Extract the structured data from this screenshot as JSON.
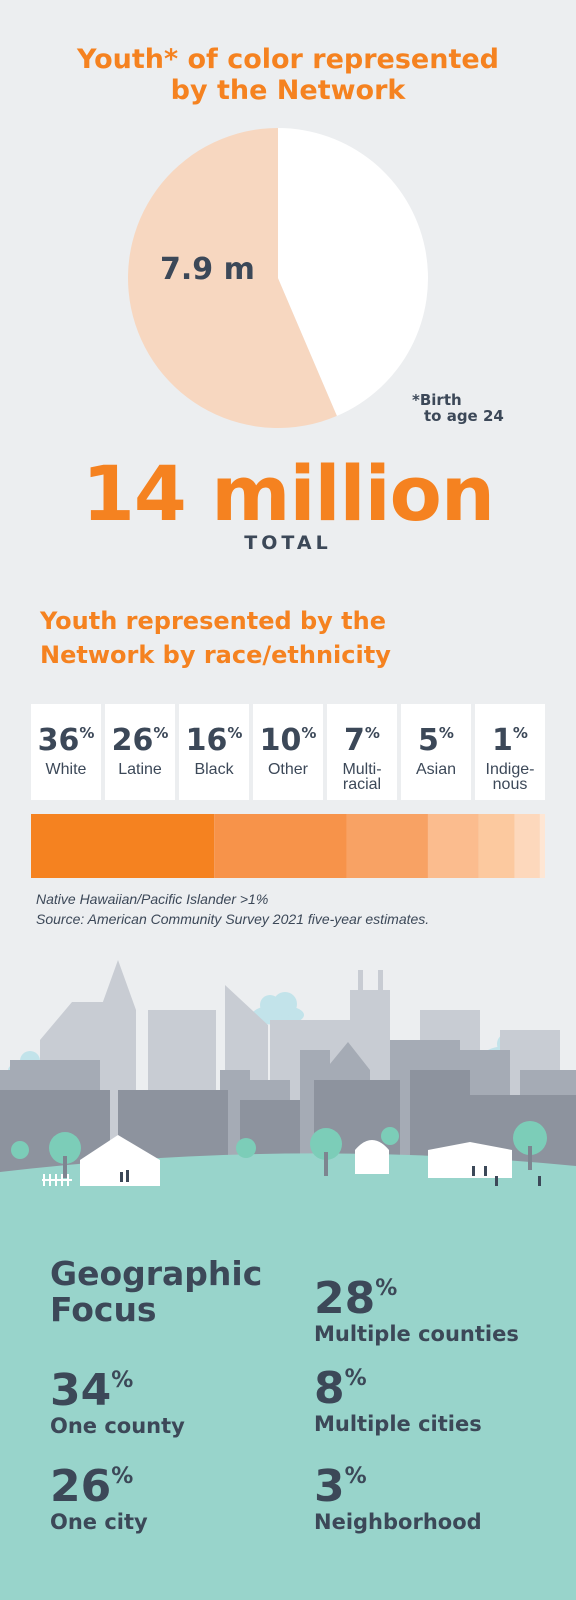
{
  "title_top": "Youth* of color represented by the Network",
  "pie": {
    "label": "7.9 m",
    "footnote_line1": "*Birth",
    "footnote_line2": "to age 24"
  },
  "total": {
    "value": "14 million",
    "word": "TOTAL"
  },
  "race_title": "Youth represented by the Network by race/ethnicity",
  "race_items": [
    {
      "pct": "36",
      "unit": "%",
      "name1": "White",
      "name2": ""
    },
    {
      "pct": "26",
      "unit": "%",
      "name1": "Latine",
      "name2": ""
    },
    {
      "pct": "16",
      "unit": "%",
      "name1": "Black",
      "name2": ""
    },
    {
      "pct": "10",
      "unit": "%",
      "name1": "Other",
      "name2": ""
    },
    {
      "pct": "7",
      "unit": "%",
      "name1": "Multi-",
      "name2": "racial"
    },
    {
      "pct": "5",
      "unit": "%",
      "name1": "Asian",
      "name2": ""
    },
    {
      "pct": "1",
      "unit": "%",
      "name1": "Indige-",
      "name2": "nous"
    }
  ],
  "notes": {
    "line1": "Native Hawaiian/Pacific Islander >1%",
    "line2": "Source: American Community Survey 2021 five-year estimates."
  },
  "geo": {
    "title_line1": "Geographic",
    "title_line2": "Focus",
    "stats": [
      {
        "pct": "28",
        "unit": "%",
        "label": "Multiple counties"
      },
      {
        "pct": "34",
        "unit": "%",
        "label": "One county"
      },
      {
        "pct": "8",
        "unit": "%",
        "label": "Multiple cities"
      },
      {
        "pct": "26",
        "unit": "%",
        "label": "One city"
      },
      {
        "pct": "3",
        "unit": "%",
        "label": "Neighborhood"
      }
    ]
  },
  "colors": {
    "accent": "#f58220",
    "dark_text": "#3c4858",
    "pie_fill": "#f7d7c0",
    "pie_rest": "#ffffff",
    "background": "#eceef0",
    "teal": "#98d4cb"
  },
  "chart_data": [
    {
      "type": "pie",
      "title": "Youth* of color represented by the Network",
      "slices": [
        {
          "label": "7.9 m",
          "value": 7.9,
          "color": "#f7d7c0"
        },
        {
          "label": "",
          "value": 6.1,
          "color": "#ffffff"
        }
      ],
      "total": 14
    },
    {
      "type": "bar",
      "title": "Youth represented by the Network by race/ethnicity",
      "stacked": true,
      "categories": [
        "White",
        "Latine",
        "Black",
        "Other",
        "Multiracial",
        "Asian",
        "Indigenous"
      ],
      "values": [
        36,
        26,
        16,
        10,
        7,
        5,
        1
      ],
      "colors": [
        "#f58220",
        "#f7934a",
        "#f8a264",
        "#fbbc8e",
        "#fcc99f",
        "#fdd8bc",
        "#fee6d4"
      ]
    }
  ]
}
